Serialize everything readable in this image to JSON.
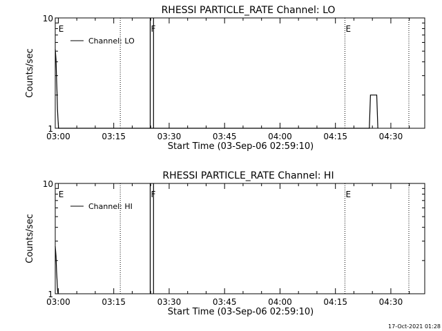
{
  "footer": {
    "timestamp": "17-Oct-2021 01:28"
  },
  "chart_data": [
    {
      "type": "line",
      "title": "RHESSI PARTICLE_RATE Channel: LO",
      "xlabel": "Start Time (03-Sep-06 02:59:10)",
      "ylabel": "Counts/sec",
      "y_scale": "log",
      "ylim": [
        1,
        10
      ],
      "y_ticks": [
        {
          "value": 1,
          "label": "1"
        },
        {
          "value": 10,
          "label": "10"
        }
      ],
      "xlim_minutes_after_start": [
        0,
        100
      ],
      "x_ticks": [
        {
          "minutes": 0.83,
          "label": "03:00"
        },
        {
          "minutes": 15.83,
          "label": "03:15"
        },
        {
          "minutes": 30.83,
          "label": "03:30"
        },
        {
          "minutes": 45.83,
          "label": "03:45"
        },
        {
          "minutes": 60.83,
          "label": "04:00"
        },
        {
          "minutes": 75.83,
          "label": "04:15"
        },
        {
          "minutes": 90.83,
          "label": "04:30"
        }
      ],
      "event_markers": [
        {
          "minutes": 0.7,
          "label": "E",
          "style": "none"
        },
        {
          "minutes": 17.6,
          "label": "",
          "style": "dotted"
        },
        {
          "minutes": 25.7,
          "label": "F",
          "style": "solid"
        },
        {
          "minutes": 26.6,
          "label": "",
          "style": "solid"
        },
        {
          "minutes": 78.4,
          "label": "E",
          "style": "dotted"
        },
        {
          "minutes": 95.7,
          "label": "",
          "style": "dotted"
        }
      ],
      "legend": {
        "label": "Channel: LO",
        "position": "top-left"
      },
      "series": [
        {
          "name": "Channel: LO",
          "x": [
            0,
            0.2,
            0.35,
            0.5,
            0.6,
            0.75,
            0.9,
            85,
            85.3,
            87,
            87.3
          ],
          "y": [
            5.2,
            4.2,
            2.8,
            2.0,
            1.5,
            1.2,
            1.0,
            1.0,
            2.0,
            2.0,
            1.0
          ]
        }
      ]
    },
    {
      "type": "line",
      "title": "RHESSI PARTICLE_RATE Channel: HI",
      "xlabel": "Start Time (03-Sep-06 02:59:10)",
      "ylabel": "Counts/sec",
      "y_scale": "log",
      "ylim": [
        1,
        10
      ],
      "y_ticks": [
        {
          "value": 1,
          "label": "1"
        },
        {
          "value": 10,
          "label": "10"
        }
      ],
      "xlim_minutes_after_start": [
        0,
        100
      ],
      "x_ticks": [
        {
          "minutes": 0.83,
          "label": "03:00"
        },
        {
          "minutes": 15.83,
          "label": "03:15"
        },
        {
          "minutes": 30.83,
          "label": "03:30"
        },
        {
          "minutes": 45.83,
          "label": "03:45"
        },
        {
          "minutes": 60.83,
          "label": "04:00"
        },
        {
          "minutes": 75.83,
          "label": "04:15"
        },
        {
          "minutes": 90.83,
          "label": "04:30"
        }
      ],
      "event_markers": [
        {
          "minutes": 0.7,
          "label": "E",
          "style": "none"
        },
        {
          "minutes": 17.6,
          "label": "",
          "style": "dotted"
        },
        {
          "minutes": 25.7,
          "label": "F",
          "style": "solid"
        },
        {
          "minutes": 26.6,
          "label": "",
          "style": "solid"
        },
        {
          "minutes": 78.4,
          "label": "E",
          "style": "dotted"
        },
        {
          "minutes": 95.7,
          "label": "",
          "style": "dotted"
        }
      ],
      "legend": {
        "label": "Channel: HI",
        "position": "top-left"
      },
      "series": [
        {
          "name": "Channel: HI",
          "x": [
            0,
            0.2,
            0.35,
            0.5,
            0.6,
            0.75
          ],
          "y": [
            2.7,
            2.2,
            1.6,
            1.3,
            1.1,
            1.0
          ]
        }
      ]
    }
  ]
}
